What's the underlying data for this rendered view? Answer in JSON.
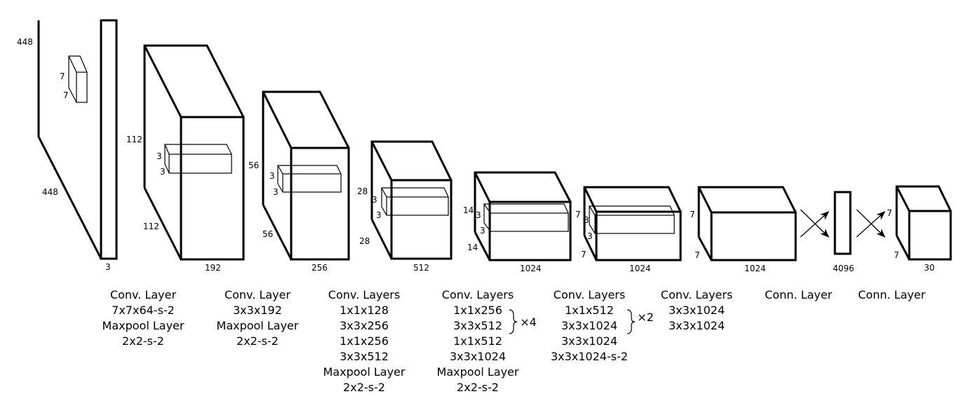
{
  "blocks": [
    {
      "dims": [
        "448",
        "448",
        "3"
      ],
      "kernel": [
        "7",
        "7"
      ]
    },
    {
      "dims": [
        "112",
        "112",
        "192"
      ],
      "kernel": [
        "3",
        "3"
      ]
    },
    {
      "dims": [
        "56",
        "56",
        "256"
      ],
      "kernel": [
        "3",
        "3"
      ]
    },
    {
      "dims": [
        "28",
        "28",
        "512"
      ],
      "kernel": [
        "3",
        "3"
      ]
    },
    {
      "dims": [
        "14",
        "14",
        "1024"
      ],
      "kernel": [
        "3",
        "3"
      ]
    },
    {
      "dims": [
        "7",
        "7",
        "1024"
      ],
      "kernel": [
        "3",
        "3"
      ]
    },
    {
      "dims": [
        "7",
        "7",
        "1024"
      ]
    },
    {
      "dims": [
        "4096"
      ]
    },
    {
      "dims": [
        "7",
        "7",
        "30"
      ]
    }
  ],
  "captions": [
    [
      "Conv. Layer",
      "7x7x64-s-2",
      "Maxpool Layer",
      "2x2-s-2"
    ],
    [
      "Conv. Layer",
      "3x3x192",
      "Maxpool Layer",
      "2x2-s-2"
    ],
    [
      "Conv. Layers",
      "1x1x128",
      "3x3x256",
      "1x1x256",
      "3x3x512",
      "Maxpool Layer",
      "2x2-s-2"
    ],
    [
      "Conv. Layers",
      "1x1x256",
      "3x3x512",
      "1x1x512",
      "3x3x1024",
      "Maxpool Layer",
      "2x2-s-2"
    ],
    [
      "Conv. Layers",
      "1x1x512",
      "3x3x1024",
      "3x3x1024",
      "3x3x1024-s-2"
    ],
    [
      "Conv. Layers",
      "3x3x1024",
      "3x3x1024"
    ],
    [
      "Conn. Layer"
    ],
    [
      "Conn. Layer"
    ]
  ],
  "repeats": [
    "×4",
    "×2"
  ]
}
